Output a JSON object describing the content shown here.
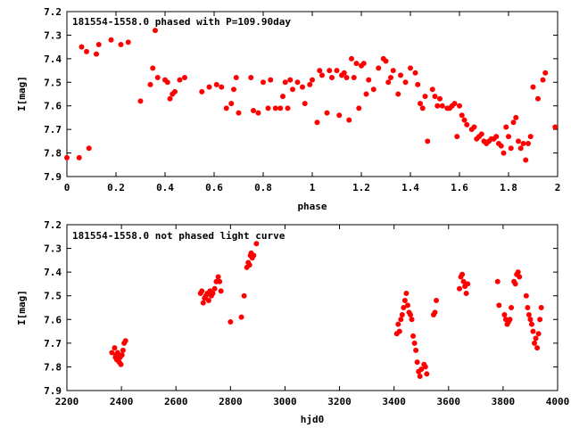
{
  "chart_data": [
    {
      "type": "scatter",
      "title": "181554-1558.0 phased with P=109.90day",
      "xlabel": "phase",
      "ylabel": "I[mag]",
      "xlim": [
        0,
        2
      ],
      "ylim": [
        7.2,
        7.9
      ],
      "y_inverted": true,
      "x_ticks": [
        "0",
        "0.2",
        "0.4",
        "0.6",
        "0.8",
        "1",
        "1.2",
        "1.4",
        "1.6",
        "1.8",
        "2"
      ],
      "y_ticks": [
        "7.2",
        "7.3",
        "7.4",
        "7.5",
        "7.6",
        "7.7",
        "7.8",
        "7.9"
      ],
      "marker_color": "#ff0000",
      "marker": "filled-circle",
      "legend": "top-left",
      "grid": false,
      "points": [
        [
          0.0,
          7.82
        ],
        [
          0.05,
          7.82
        ],
        [
          0.06,
          7.35
        ],
        [
          0.08,
          7.37
        ],
        [
          0.09,
          7.78
        ],
        [
          0.12,
          7.38
        ],
        [
          0.13,
          7.34
        ],
        [
          0.18,
          7.32
        ],
        [
          0.22,
          7.34
        ],
        [
          0.25,
          7.33
        ],
        [
          0.3,
          7.58
        ],
        [
          0.34,
          7.51
        ],
        [
          0.35,
          7.44
        ],
        [
          0.36,
          7.28
        ],
        [
          0.37,
          7.48
        ],
        [
          0.4,
          7.49
        ],
        [
          0.41,
          7.5
        ],
        [
          0.42,
          7.57
        ],
        [
          0.43,
          7.55
        ],
        [
          0.44,
          7.54
        ],
        [
          0.46,
          7.49
        ],
        [
          0.48,
          7.48
        ],
        [
          0.55,
          7.54
        ],
        [
          0.58,
          7.52
        ],
        [
          0.61,
          7.51
        ],
        [
          0.63,
          7.52
        ],
        [
          0.65,
          7.61
        ],
        [
          0.67,
          7.59
        ],
        [
          0.68,
          7.53
        ],
        [
          0.69,
          7.48
        ],
        [
          0.7,
          7.63
        ],
        [
          0.75,
          7.48
        ],
        [
          0.76,
          7.62
        ],
        [
          0.78,
          7.63
        ],
        [
          0.8,
          7.5
        ],
        [
          0.82,
          7.61
        ],
        [
          0.83,
          7.49
        ],
        [
          0.85,
          7.61
        ],
        [
          0.87,
          7.61
        ],
        [
          0.88,
          7.56
        ],
        [
          0.89,
          7.5
        ],
        [
          0.9,
          7.61
        ],
        [
          0.91,
          7.49
        ],
        [
          0.92,
          7.53
        ],
        [
          0.94,
          7.5
        ],
        [
          0.96,
          7.52
        ],
        [
          0.97,
          7.59
        ],
        [
          0.99,
          7.51
        ],
        [
          1.0,
          7.49
        ],
        [
          1.02,
          7.67
        ],
        [
          1.03,
          7.45
        ],
        [
          1.04,
          7.47
        ],
        [
          1.06,
          7.63
        ],
        [
          1.07,
          7.45
        ],
        [
          1.08,
          7.48
        ],
        [
          1.1,
          7.45
        ],
        [
          1.11,
          7.64
        ],
        [
          1.12,
          7.47
        ],
        [
          1.13,
          7.46
        ],
        [
          1.14,
          7.48
        ],
        [
          1.15,
          7.66
        ],
        [
          1.16,
          7.4
        ],
        [
          1.17,
          7.48
        ],
        [
          1.18,
          7.42
        ],
        [
          1.19,
          7.61
        ],
        [
          1.2,
          7.43
        ],
        [
          1.21,
          7.42
        ],
        [
          1.22,
          7.55
        ],
        [
          1.23,
          7.49
        ],
        [
          1.25,
          7.53
        ],
        [
          1.27,
          7.44
        ],
        [
          1.29,
          7.4
        ],
        [
          1.3,
          7.41
        ],
        [
          1.31,
          7.5
        ],
        [
          1.32,
          7.48
        ],
        [
          1.33,
          7.45
        ],
        [
          1.35,
          7.55
        ],
        [
          1.36,
          7.47
        ],
        [
          1.38,
          7.5
        ],
        [
          1.4,
          7.44
        ],
        [
          1.42,
          7.46
        ],
        [
          1.43,
          7.51
        ],
        [
          1.44,
          7.59
        ],
        [
          1.45,
          7.61
        ],
        [
          1.46,
          7.56
        ],
        [
          1.47,
          7.75
        ],
        [
          1.49,
          7.53
        ],
        [
          1.5,
          7.56
        ],
        [
          1.51,
          7.6
        ],
        [
          1.52,
          7.57
        ],
        [
          1.53,
          7.6
        ],
        [
          1.55,
          7.61
        ],
        [
          1.56,
          7.61
        ],
        [
          1.57,
          7.6
        ],
        [
          1.58,
          7.59
        ],
        [
          1.59,
          7.73
        ],
        [
          1.6,
          7.6
        ],
        [
          1.61,
          7.64
        ],
        [
          1.62,
          7.66
        ],
        [
          1.63,
          7.68
        ],
        [
          1.65,
          7.7
        ],
        [
          1.66,
          7.69
        ],
        [
          1.67,
          7.74
        ],
        [
          1.68,
          7.73
        ],
        [
          1.69,
          7.72
        ],
        [
          1.7,
          7.75
        ],
        [
          1.71,
          7.76
        ],
        [
          1.72,
          7.75
        ],
        [
          1.73,
          7.74
        ],
        [
          1.74,
          7.74
        ],
        [
          1.75,
          7.73
        ],
        [
          1.76,
          7.76
        ],
        [
          1.77,
          7.77
        ],
        [
          1.78,
          7.8
        ],
        [
          1.79,
          7.69
        ],
        [
          1.8,
          7.73
        ],
        [
          1.81,
          7.78
        ],
        [
          1.82,
          7.67
        ],
        [
          1.83,
          7.65
        ],
        [
          1.84,
          7.75
        ],
        [
          1.85,
          7.78
        ],
        [
          1.86,
          7.76
        ],
        [
          1.87,
          7.83
        ],
        [
          1.88,
          7.76
        ],
        [
          1.89,
          7.73
        ],
        [
          1.9,
          7.52
        ],
        [
          1.92,
          7.57
        ],
        [
          1.94,
          7.49
        ],
        [
          1.95,
          7.46
        ],
        [
          1.99,
          7.69
        ]
      ]
    },
    {
      "type": "scatter",
      "title": "181554-1558.0 not phased light curve",
      "xlabel": "hjd0",
      "ylabel": "I[mag]",
      "xlim": [
        2200,
        4000
      ],
      "ylim": [
        7.2,
        7.9
      ],
      "y_inverted": true,
      "x_ticks": [
        "2200",
        "2400",
        "2600",
        "2800",
        "3000",
        "3200",
        "3400",
        "3600",
        "3800",
        "4000"
      ],
      "y_ticks": [
        "7.2",
        "7.3",
        "7.4",
        "7.5",
        "7.6",
        "7.7",
        "7.8",
        "7.9"
      ],
      "marker_color": "#ff0000",
      "marker": "filled-circle",
      "legend": "top-left",
      "grid": false,
      "points": [
        [
          2365,
          7.74
        ],
        [
          2375,
          7.72
        ],
        [
          2378,
          7.76
        ],
        [
          2380,
          7.75
        ],
        [
          2383,
          7.77
        ],
        [
          2386,
          7.74
        ],
        [
          2390,
          7.76
        ],
        [
          2392,
          7.78
        ],
        [
          2395,
          7.76
        ],
        [
          2398,
          7.79
        ],
        [
          2402,
          7.75
        ],
        [
          2406,
          7.73
        ],
        [
          2410,
          7.7
        ],
        [
          2415,
          7.69
        ],
        [
          2690,
          7.49
        ],
        [
          2695,
          7.48
        ],
        [
          2700,
          7.53
        ],
        [
          2705,
          7.51
        ],
        [
          2710,
          7.5
        ],
        [
          2715,
          7.49
        ],
        [
          2720,
          7.52
        ],
        [
          2725,
          7.48
        ],
        [
          2730,
          7.5
        ],
        [
          2735,
          7.49
        ],
        [
          2742,
          7.47
        ],
        [
          2748,
          7.44
        ],
        [
          2755,
          7.42
        ],
        [
          2760,
          7.44
        ],
        [
          2765,
          7.48
        ],
        [
          2800,
          7.61
        ],
        [
          2840,
          7.59
        ],
        [
          2850,
          7.5
        ],
        [
          2860,
          7.38
        ],
        [
          2865,
          7.36
        ],
        [
          2870,
          7.37
        ],
        [
          2873,
          7.33
        ],
        [
          2876,
          7.32
        ],
        [
          2880,
          7.34
        ],
        [
          2885,
          7.33
        ],
        [
          2895,
          7.28
        ],
        [
          3410,
          7.66
        ],
        [
          3415,
          7.62
        ],
        [
          3420,
          7.65
        ],
        [
          3425,
          7.6
        ],
        [
          3430,
          7.58
        ],
        [
          3435,
          7.55
        ],
        [
          3440,
          7.52
        ],
        [
          3445,
          7.49
        ],
        [
          3450,
          7.54
        ],
        [
          3455,
          7.57
        ],
        [
          3460,
          7.58
        ],
        [
          3465,
          7.6
        ],
        [
          3470,
          7.67
        ],
        [
          3475,
          7.7
        ],
        [
          3480,
          7.73
        ],
        [
          3485,
          7.78
        ],
        [
          3490,
          7.82
        ],
        [
          3495,
          7.84
        ],
        [
          3500,
          7.81
        ],
        [
          3510,
          7.79
        ],
        [
          3515,
          7.8
        ],
        [
          3520,
          7.83
        ],
        [
          3545,
          7.58
        ],
        [
          3550,
          7.57
        ],
        [
          3555,
          7.52
        ],
        [
          3640,
          7.47
        ],
        [
          3645,
          7.42
        ],
        [
          3650,
          7.41
        ],
        [
          3655,
          7.44
        ],
        [
          3660,
          7.46
        ],
        [
          3665,
          7.49
        ],
        [
          3670,
          7.45
        ],
        [
          3780,
          7.44
        ],
        [
          3785,
          7.54
        ],
        [
          3805,
          7.58
        ],
        [
          3810,
          7.6
        ],
        [
          3815,
          7.62
        ],
        [
          3820,
          7.61
        ],
        [
          3825,
          7.6
        ],
        [
          3830,
          7.55
        ],
        [
          3840,
          7.44
        ],
        [
          3845,
          7.45
        ],
        [
          3850,
          7.41
        ],
        [
          3855,
          7.4
        ],
        [
          3860,
          7.42
        ],
        [
          3885,
          7.5
        ],
        [
          3890,
          7.55
        ],
        [
          3895,
          7.58
        ],
        [
          3900,
          7.6
        ],
        [
          3905,
          7.62
        ],
        [
          3910,
          7.65
        ],
        [
          3915,
          7.7
        ],
        [
          3920,
          7.68
        ],
        [
          3925,
          7.72
        ],
        [
          3930,
          7.66
        ],
        [
          3935,
          7.6
        ],
        [
          3940,
          7.55
        ]
      ]
    }
  ]
}
